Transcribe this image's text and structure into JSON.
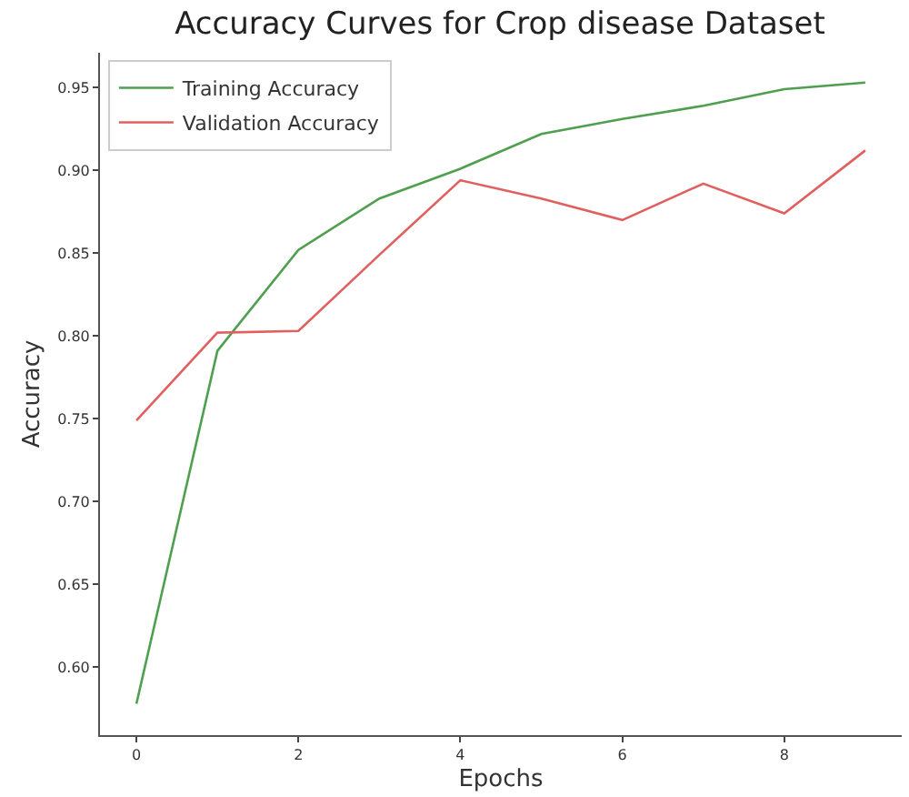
{
  "chart_data": {
    "type": "line",
    "title": "Accuracy Curves for Crop disease Dataset",
    "xlabel": "Epochs",
    "ylabel": "Accuracy",
    "x": [
      0,
      1,
      2,
      3,
      4,
      5,
      6,
      7,
      8,
      9
    ],
    "series": [
      {
        "name": "Training Accuracy",
        "color": "#4f9f4f",
        "values": [
          0.578,
          0.791,
          0.852,
          0.883,
          0.901,
          0.922,
          0.931,
          0.939,
          0.949,
          0.953
        ]
      },
      {
        "name": "Validation Accuracy",
        "color": "#e06060",
        "values": [
          0.749,
          0.802,
          0.803,
          0.849,
          0.894,
          0.883,
          0.87,
          0.892,
          0.874,
          0.912
        ]
      }
    ],
    "xlim": [
      -0.45,
      9.45
    ],
    "ylim": [
      0.559,
      0.971
    ],
    "xticks": [
      0,
      2,
      4,
      6,
      8
    ],
    "yticks": [
      {
        "value": 0.6,
        "label": "0.60"
      },
      0.65,
      {
        "value": 0.7,
        "label": "0.70"
      },
      0.75,
      {
        "value": 0.8,
        "label": "0.80"
      },
      0.85,
      {
        "value": 0.9,
        "label": "0.90"
      },
      0.95
    ],
    "grid": false,
    "legend": "top left",
    "marker": "none",
    "line_style": "solid"
  }
}
